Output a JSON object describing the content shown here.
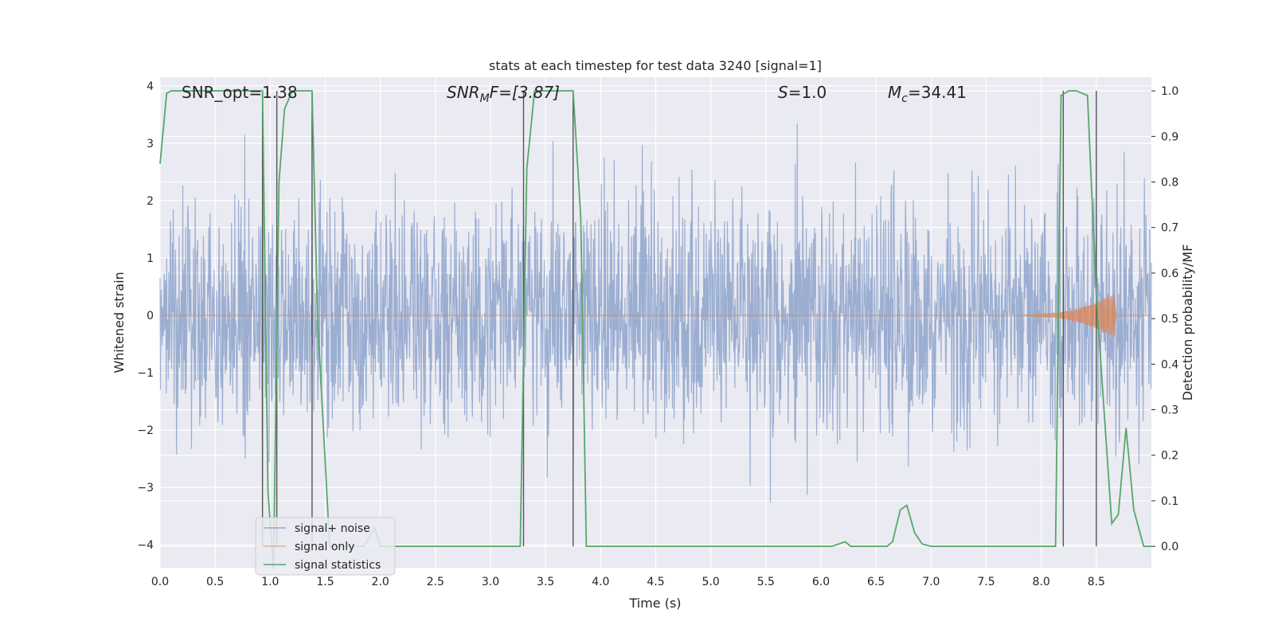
{
  "chart_data": {
    "type": "line",
    "title": "stats at each timestep for test data 3240 [signal=1]",
    "xlabel": "Time (s)",
    "ylabel_left": "Whitened strain",
    "ylabel_right": "Detection probability/MF",
    "xlim": [
      0.0,
      9.0
    ],
    "ylim_left": [
      -4.4,
      4.15
    ],
    "ylim_right": [
      -0.047,
      1.03
    ],
    "x_ticks": [
      "0.0",
      "0.5",
      "1.0",
      "1.5",
      "2.0",
      "2.5",
      "3.0",
      "3.5",
      "4.0",
      "4.5",
      "5.0",
      "5.5",
      "6.0",
      "6.5",
      "7.0",
      "7.5",
      "8.0",
      "8.5"
    ],
    "y_ticks_left": [
      "−4",
      "−3",
      "−2",
      "−1",
      "0",
      "1",
      "2",
      "3",
      "4"
    ],
    "y_ticks_right": [
      "0.0",
      "0.1",
      "0.2",
      "0.3",
      "0.4",
      "0.5",
      "0.6",
      "0.7",
      "0.8",
      "0.9",
      "1.0"
    ],
    "grid": true,
    "legend_position": "lower-left",
    "colors": {
      "background": "#eaeaf2",
      "grid": "#ffffff",
      "signal_noise": "#4c72b0",
      "signal_only": "#dd8452",
      "signal_statistics": "#55a868",
      "marker_lines": "#555555"
    },
    "annotations": {
      "snr_opt": "SNR_opt=1.38",
      "snr_mf_prefix": "SNR",
      "snr_mf_sub": "M",
      "snr_mf_suffix": "F=[3.87]",
      "s_prefix": "S",
      "s_suffix": "=1.0",
      "mc_prefix": "M",
      "mc_sub": "c",
      "mc_suffix": "=34.41"
    },
    "series": [
      {
        "name": "signal+ noise",
        "axis": "left",
        "description_values": "gaussian noise, std ~1.0, samples in approx [-4.0, 3.9]",
        "noise_std": 1.0
      },
      {
        "name": "signal only",
        "axis": "left",
        "chirp": {
          "start": 7.6,
          "end": 8.68,
          "peak_amplitude": 0.4
        }
      },
      {
        "name": "signal statistics",
        "axis": "right",
        "x": [
          0.0,
          0.06,
          0.1,
          0.93,
          0.98,
          1.03,
          1.08,
          1.13,
          1.2,
          1.38,
          1.43,
          1.54,
          1.85,
          1.95,
          2.0,
          3.27,
          3.33,
          3.4,
          3.75,
          3.82,
          3.87,
          4.7,
          6.1,
          6.22,
          6.27,
          6.6,
          6.65,
          6.72,
          6.78,
          6.85,
          6.92,
          7.0,
          7.2,
          8.13,
          8.18,
          8.25,
          8.32,
          8.42,
          8.5,
          8.64,
          8.7,
          8.77,
          8.84,
          8.93,
          9.0
        ],
        "y": [
          0.84,
          0.995,
          1.0,
          1.0,
          0.12,
          -0.05,
          0.8,
          0.96,
          1.0,
          1.0,
          0.5,
          0.0,
          0.0,
          0.04,
          0.0,
          0.0,
          0.83,
          1.0,
          1.0,
          0.72,
          0.0,
          0.0,
          0.0,
          0.01,
          0.0,
          0.0,
          0.01,
          0.08,
          0.09,
          0.03,
          0.005,
          0.0,
          0.0,
          0.0,
          0.99,
          1.0,
          1.0,
          0.99,
          0.55,
          0.05,
          0.07,
          0.26,
          0.08,
          0.0,
          0.0
        ]
      }
    ],
    "marker_lines_x": [
      0.93,
      1.06,
      1.38,
      3.3,
      3.75,
      8.2,
      8.5
    ],
    "legend": [
      "signal+ noise",
      "signal only",
      "signal statistics"
    ]
  }
}
